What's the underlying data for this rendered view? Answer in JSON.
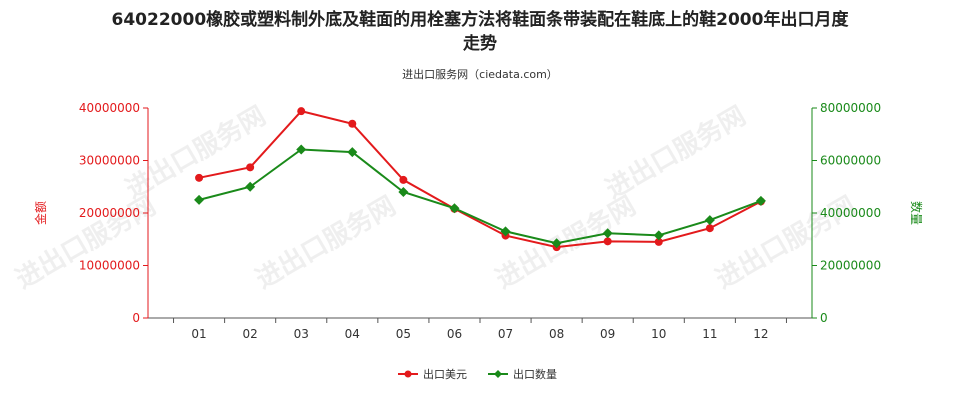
{
  "title_line1": "64022000橡胶或塑料制外底及鞋面的用栓塞方法将鞋面条带装配在鞋底上的鞋2000年出口月度",
  "title_line2": "走势",
  "subtitle": "进出口服务网（ciedata.com）",
  "watermark": "进出口服务网",
  "colors": {
    "usd": "#e31a1c",
    "qty": "#1a8a1a",
    "axis_left": "#e31a1c",
    "axis_right": "#1a8a1a"
  },
  "chart_data": {
    "type": "line",
    "categories": [
      "01",
      "02",
      "03",
      "04",
      "05",
      "06",
      "07",
      "08",
      "09",
      "10",
      "11",
      "12"
    ],
    "left_axis": {
      "label": "金额",
      "ylim": [
        0,
        40000000
      ],
      "ticks": [
        "0",
        "10000000",
        "20000000",
        "30000000",
        "40000000"
      ]
    },
    "right_axis": {
      "label": "数量",
      "ylim": [
        0,
        80000000
      ],
      "ticks": [
        "0",
        "20000000",
        "40000000",
        "60000000",
        "80000000"
      ]
    },
    "series": [
      {
        "name": "出口美元",
        "axis": "left",
        "color": "#e31a1c",
        "values": [
          26700000,
          28700000,
          39400000,
          37000000,
          26300000,
          20800000,
          15700000,
          13500000,
          14600000,
          14500000,
          17100000,
          22200000
        ]
      },
      {
        "name": "出口数量",
        "axis": "right",
        "color": "#1a8a1a",
        "values": [
          45000000,
          50000000,
          64200000,
          63200000,
          48000000,
          41800000,
          33000000,
          28500000,
          32300000,
          31500000,
          37300000,
          44600000
        ]
      }
    ],
    "legend_position": "bottom-center",
    "grid": false
  }
}
